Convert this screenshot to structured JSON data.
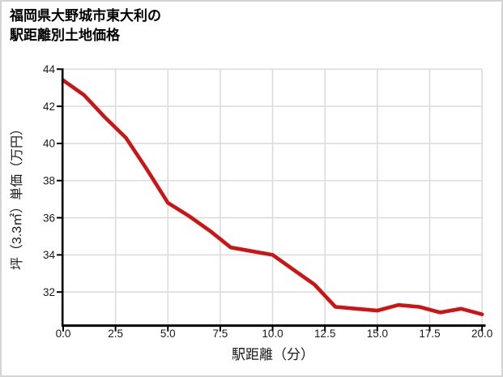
{
  "chart_data": {
    "type": "line",
    "title": "福岡県大野城市東大利の駅距離別土地価格",
    "title_lines": [
      "福岡県大野城市東大利の",
      "駅距離別土地価格"
    ],
    "xlabel": "駅距離（分）",
    "ylabel": "坪（3.3㎡）単価（万円）",
    "x": [
      0,
      1,
      2,
      3,
      4,
      5,
      6,
      7,
      8,
      9,
      10,
      11,
      12,
      13,
      14,
      15,
      16,
      17,
      18,
      19,
      20
    ],
    "y": [
      43.4,
      42.6,
      41.4,
      40.3,
      38.6,
      36.8,
      36.1,
      35.3,
      34.4,
      34.2,
      34.0,
      33.2,
      32.4,
      31.2,
      31.1,
      31.0,
      31.3,
      31.2,
      30.9,
      31.1,
      30.8
    ],
    "x_tick_labels": [
      "0.0",
      "2.5",
      "5.0",
      "7.5",
      "10.0",
      "12.5",
      "15.0",
      "17.5",
      "20.0"
    ],
    "x_tick_values": [
      0,
      2.5,
      5,
      7.5,
      10,
      12.5,
      15,
      17.5,
      20
    ],
    "y_tick_labels": [
      "32",
      "34",
      "36",
      "38",
      "40",
      "42",
      "44"
    ],
    "y_tick_values": [
      32,
      34,
      36,
      38,
      40,
      42,
      44
    ],
    "xlim": [
      0,
      20.15
    ],
    "ylim": [
      30.25,
      44
    ],
    "grid": true,
    "legend": null,
    "line_color": "#cc1414",
    "grid_color": "#dcdcdc",
    "axis_color": "#000000",
    "tick_label_color": "#1a1a1a"
  }
}
